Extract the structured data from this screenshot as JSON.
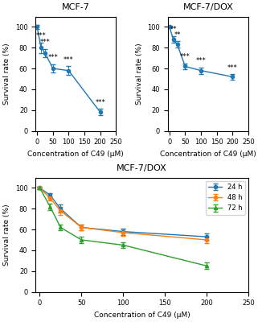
{
  "chart_data": [
    {
      "type": "line",
      "title": "MCF-7",
      "x_label": "Concentration of C49 (μM)",
      "y_label": "Survival rate (%)",
      "x": [
        0,
        12.5,
        25,
        50,
        100,
        200
      ],
      "series": [
        {
          "values": [
            100,
            80,
            75,
            60,
            58,
            18
          ],
          "yerr": [
            2,
            5,
            4,
            4,
            4,
            3
          ],
          "marker": "circle"
        }
      ],
      "annotations": [
        {
          "text": "***",
          "x": 12.5,
          "y": 88
        },
        {
          "text": "***",
          "x": 25,
          "y": 82
        },
        {
          "text": "***",
          "x": 50,
          "y": 67
        },
        {
          "text": "***",
          "x": 100,
          "y": 65
        },
        {
          "text": "***",
          "x": 200,
          "y": 24
        }
      ],
      "xlim": [
        -5,
        250
      ],
      "xticks": [
        0,
        50,
        100,
        150,
        200,
        250
      ],
      "ylim": [
        0,
        110
      ],
      "yticks": [
        0,
        20,
        40,
        60,
        80,
        100
      ]
    },
    {
      "type": "line",
      "title": "MCF-7/DOX",
      "x_label": "Concentration of C49 (μM)",
      "y_label": "Survival rate (%)",
      "x": [
        0,
        12.5,
        25,
        50,
        100,
        200
      ],
      "series": [
        {
          "values": [
            100,
            88,
            83,
            62,
            58,
            52
          ],
          "yerr": [
            1,
            3,
            3,
            3,
            3,
            3
          ],
          "marker": "circle"
        }
      ],
      "annotations": [
        {
          "text": "**",
          "x": 12.5,
          "y": 94
        },
        {
          "text": "**",
          "x": 25,
          "y": 89
        },
        {
          "text": "***",
          "x": 50,
          "y": 68
        },
        {
          "text": "***",
          "x": 100,
          "y": 64
        },
        {
          "text": "***",
          "x": 200,
          "y": 57
        }
      ],
      "xlim": [
        -5,
        250
      ],
      "xticks": [
        0,
        50,
        100,
        150,
        200,
        250
      ],
      "ylim": [
        0,
        110
      ],
      "yticks": [
        0,
        20,
        40,
        60,
        80,
        100
      ]
    },
    {
      "type": "line",
      "title": "MCF-7/DOX",
      "x_label": "Concentration of C49 (μM)",
      "y_label": "Survival rate (%)",
      "x": [
        0,
        12.5,
        25,
        50,
        100,
        200
      ],
      "series": [
        {
          "name": "24 h",
          "values": [
            100,
            93,
            80,
            62,
            58,
            53
          ],
          "yerr": [
            1,
            2,
            4,
            3,
            3,
            3
          ],
          "marker": "circle"
        },
        {
          "name": "48 h",
          "values": [
            100,
            90,
            78,
            62,
            57,
            50
          ],
          "yerr": [
            1,
            2,
            4,
            3,
            3,
            3
          ],
          "marker": "circle"
        },
        {
          "name": "72 h",
          "values": [
            100,
            82,
            62,
            50,
            45,
            25
          ],
          "yerr": [
            1,
            3,
            3,
            3,
            3,
            3
          ],
          "marker": "triangle"
        }
      ],
      "legend": "upper right",
      "xlim": [
        -5,
        250
      ],
      "xticks": [
        0,
        50,
        100,
        150,
        200,
        250
      ],
      "ylim": [
        0,
        110
      ],
      "yticks": [
        0,
        20,
        40,
        60,
        80,
        100
      ]
    }
  ]
}
